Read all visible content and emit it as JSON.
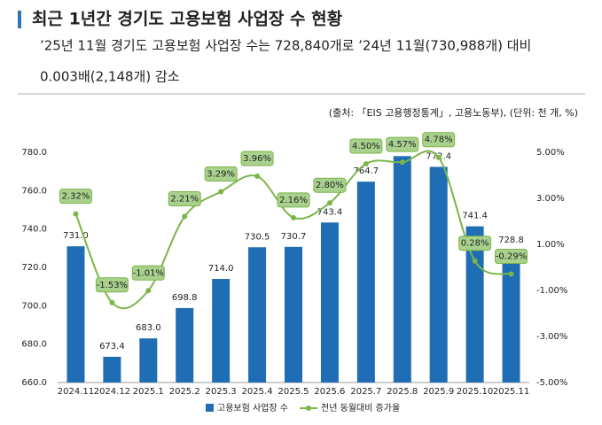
{
  "chart_data": {
    "type": "bar",
    "title": "최근 1년간 경기도 고용보험 사업장 수 현황",
    "subtitle": [
      "’25년 11월 경기도 고용보험 사업장 수는 728,840개로 ’24년 11월(730,988개) 대비",
      "0.003배(2,148개) 감소"
    ],
    "source": "(출처: 「EIS 고용행정통계」, 고용노동부), (단위: 천 개, %)",
    "categories": [
      "2024.11",
      "2024.12",
      "2025.1",
      "2025.2",
      "2025.3",
      "2025.4",
      "2025.5",
      "2025.6",
      "2025.7",
      "2025.8",
      "2025.9",
      "2025.10",
      "2025.11"
    ],
    "series": [
      {
        "name": "고용보험 사업장 수",
        "type": "bar",
        "color": "#1f6db5",
        "values": [
          731.0,
          673.4,
          683.0,
          698.8,
          714.0,
          730.5,
          730.7,
          743.4,
          764.7,
          778.0,
          772.4,
          741.4,
          728.8
        ],
        "value_labels": [
          "731.0",
          "673.4",
          "683.0",
          "698.8",
          "714.0",
          "730.5",
          "730.7",
          "743.4",
          "764.7",
          "778.0",
          "772.4",
          "741.4",
          "728.8"
        ]
      },
      {
        "name": "전년 동월대비 증가율",
        "type": "line",
        "axis": "y2",
        "color": "#7ab648",
        "values": [
          2.32,
          -1.53,
          -1.01,
          2.21,
          3.29,
          3.96,
          2.16,
          2.8,
          4.5,
          4.57,
          4.78,
          0.28,
          -0.29
        ],
        "value_labels": [
          "2.32%",
          "-1.53%",
          "-1.01%",
          "2.21%",
          "3.29%",
          "3.96%",
          "2.16%",
          "2.80%",
          "4.50%",
          "4.57%",
          "4.78%",
          "0.28%",
          "-0.29%"
        ]
      }
    ],
    "ylim": [
      660,
      780
    ],
    "yticks": [
      {
        "value": 660,
        "label": "660.0"
      },
      {
        "value": 680,
        "label": "680.0"
      },
      {
        "value": 700,
        "label": "700.0"
      },
      {
        "value": 720,
        "label": "720.0"
      },
      {
        "value": 740,
        "label": "740.0"
      },
      {
        "value": 760,
        "label": "760.0"
      },
      {
        "value": 780,
        "label": "780.0"
      }
    ],
    "y2lim": [
      -5,
      5
    ],
    "y2ticks": [
      {
        "value": -5,
        "label": "-5.00%"
      },
      {
        "value": -3,
        "label": "-3.00%"
      },
      {
        "value": -1,
        "label": "-1.00%"
      },
      {
        "value": 1,
        "label": "1.00%"
      },
      {
        "value": 3,
        "label": "3.00%"
      },
      {
        "value": 5,
        "label": "5.00%"
      }
    ]
  }
}
